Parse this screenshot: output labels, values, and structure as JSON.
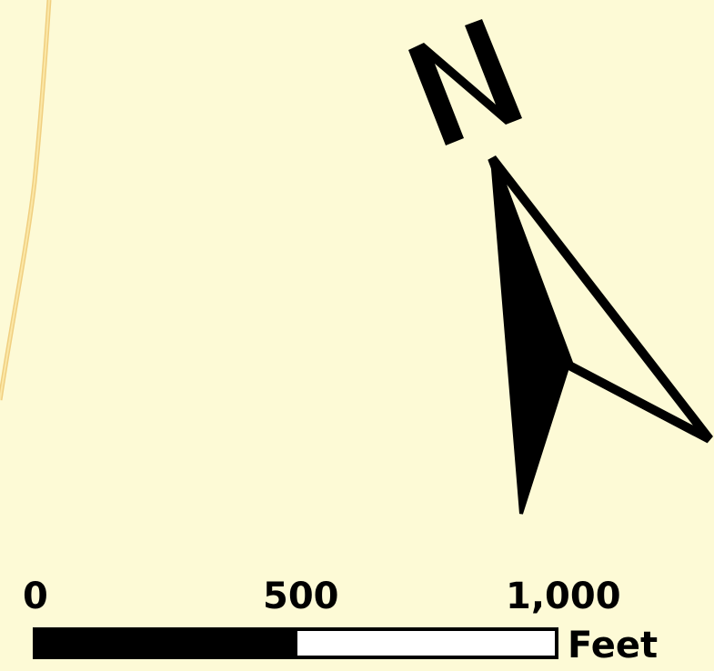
{
  "map": {
    "background_color": "#fdfad6",
    "road_color": "#f5d98c",
    "north_arrow": {
      "letter": "N",
      "color": "#000000"
    },
    "scale_bar": {
      "ticks": [
        "0",
        "500",
        "1,000"
      ],
      "unit": "Feet",
      "filled_fraction": 0.5
    }
  }
}
